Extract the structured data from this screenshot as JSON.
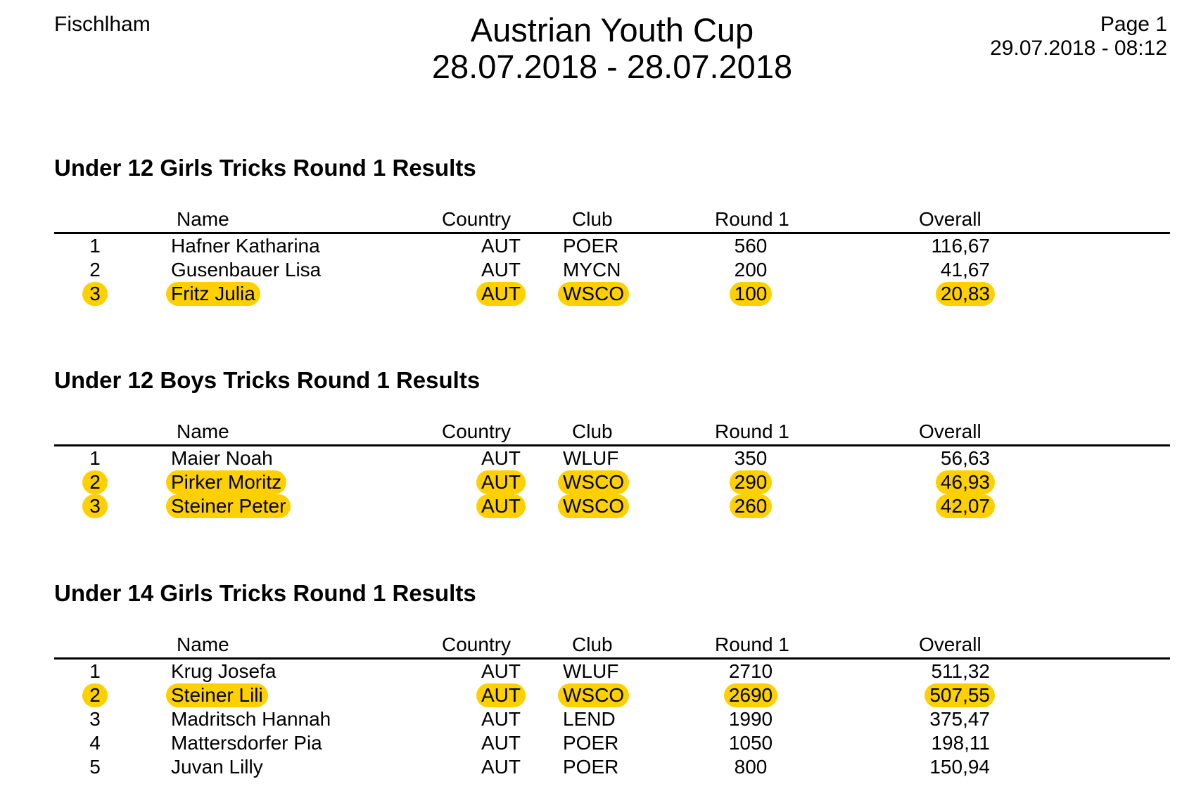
{
  "header": {
    "location": "Fischlham",
    "title": "Austrian Youth Cup",
    "date_range": "28.07.2018 - 28.07.2018",
    "page": "Page 1",
    "printed": "29.07.2018 - 08:12"
  },
  "columns": {
    "name": "Name",
    "country": "Country",
    "club": "Club",
    "round1": "Round 1",
    "overall": "Overall"
  },
  "sections": [
    {
      "title": "Under 12 Girls Tricks Round 1 Results",
      "rows": [
        {
          "place": "1",
          "name": "Hafner Katharina",
          "country": "AUT",
          "club": "POER",
          "round1": "560",
          "overall": "116,67",
          "highlight": false
        },
        {
          "place": "2",
          "name": "Gusenbauer Lisa",
          "country": "AUT",
          "club": "MYCN",
          "round1": "200",
          "overall": "41,67",
          "highlight": false
        },
        {
          "place": "3",
          "name": "Fritz Julia",
          "country": "AUT",
          "club": "WSCO",
          "round1": "100",
          "overall": "20,83",
          "highlight": true
        }
      ]
    },
    {
      "title": "Under 12 Boys Tricks Round 1 Results",
      "rows": [
        {
          "place": "1",
          "name": "Maier Noah",
          "country": "AUT",
          "club": "WLUF",
          "round1": "350",
          "overall": "56,63",
          "highlight": false
        },
        {
          "place": "2",
          "name": "Pirker Moritz",
          "country": "AUT",
          "club": "WSCO",
          "round1": "290",
          "overall": "46,93",
          "highlight": true
        },
        {
          "place": "3",
          "name": "Steiner Peter",
          "country": "AUT",
          "club": "WSCO",
          "round1": "260",
          "overall": "42,07",
          "highlight": true
        }
      ]
    },
    {
      "title": "Under 14 Girls Tricks Round 1 Results",
      "rows": [
        {
          "place": "1",
          "name": "Krug Josefa",
          "country": "AUT",
          "club": "WLUF",
          "round1": "2710",
          "overall": "511,32",
          "highlight": false
        },
        {
          "place": "2",
          "name": "Steiner Lili",
          "country": "AUT",
          "club": "WSCO",
          "round1": "2690",
          "overall": "507,55",
          "highlight": true
        },
        {
          "place": "3",
          "name": "Madritsch Hannah",
          "country": "AUT",
          "club": "LEND",
          "round1": "1990",
          "overall": "375,47",
          "highlight": false
        },
        {
          "place": "4",
          "name": "Mattersdorfer Pia",
          "country": "AUT",
          "club": "POER",
          "round1": "1050",
          "overall": "198,11",
          "highlight": false
        },
        {
          "place": "5",
          "name": "Juvan Lilly",
          "country": "AUT",
          "club": "POER",
          "round1": "800",
          "overall": "150,94",
          "highlight": false
        }
      ]
    }
  ],
  "colors": {
    "highlight": "#ffd000",
    "text": "#000000",
    "background": "#ffffff"
  }
}
